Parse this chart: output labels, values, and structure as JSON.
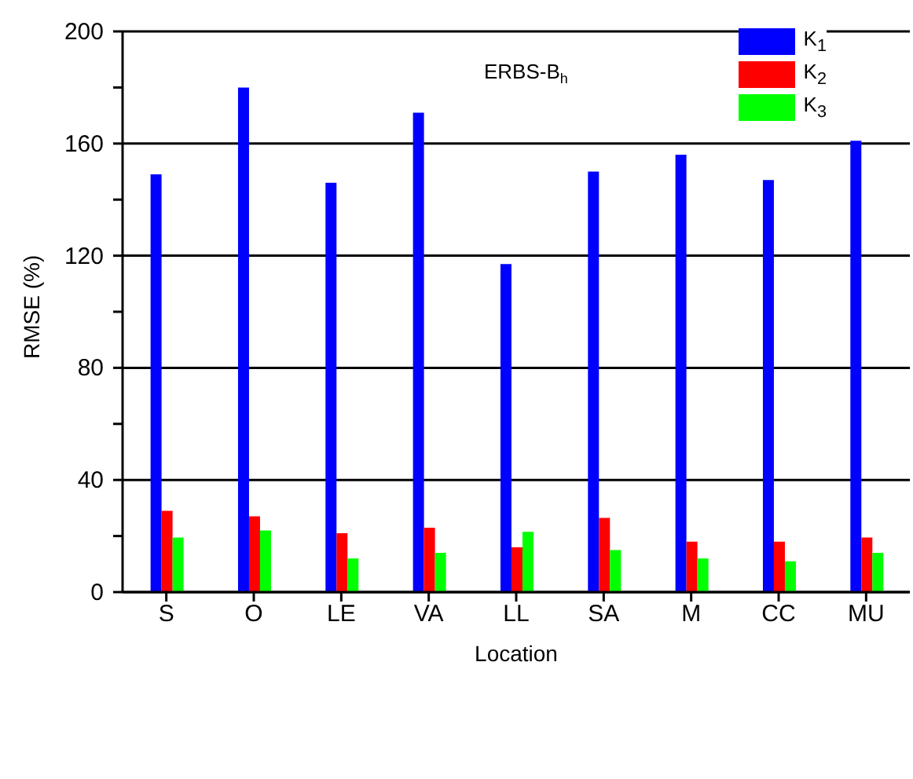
{
  "chart_data": {
    "type": "bar",
    "title": "ERBS-B$_{h}$",
    "xlabel": "Location",
    "ylabel": "RMSE (%)",
    "categories": [
      "S",
      "O",
      "LE",
      "VA",
      "LL",
      "SA",
      "M",
      "CC",
      "MU"
    ],
    "series": [
      {
        "name": "K$_{1}$",
        "color": "#0000ff",
        "values": [
          149,
          180,
          146,
          171,
          117,
          150,
          156,
          147,
          161
        ]
      },
      {
        "name": "K$_{2}$",
        "color": "#ff0000",
        "values": [
          29,
          27,
          21,
          23,
          16,
          26.5,
          18,
          18,
          19.5
        ]
      },
      {
        "name": "K$_{3}$",
        "color": "#00ff00",
        "values": [
          19.5,
          22,
          12,
          14,
          21.5,
          15,
          12,
          11,
          14
        ]
      }
    ],
    "ylim": [
      0,
      200
    ],
    "yticks": [
      0,
      {
        "value": 20,
        "label": null
      },
      40,
      {
        "value": 60,
        "label": null
      },
      80,
      {
        "value": 100,
        "label": null
      },
      120,
      {
        "value": 140,
        "label": null
      },
      160,
      {
        "value": 180,
        "label": null
      },
      200
    ],
    "grid": "y",
    "legend": "top right"
  }
}
